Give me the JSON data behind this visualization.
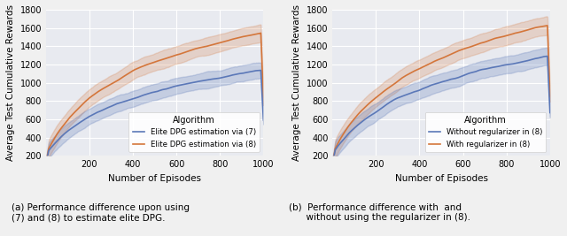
{
  "fig_width": 6.4,
  "fig_height": 2.67,
  "dpi": 100,
  "x_min": 1,
  "x_max": 1000,
  "y_min": 200,
  "y_max": 1800,
  "x_ticks": [
    200,
    400,
    600,
    800,
    1000
  ],
  "y_ticks": [
    200,
    400,
    600,
    800,
    1000,
    1200,
    1400,
    1600,
    1800
  ],
  "xlabel": "Number of Episodes",
  "ylabel": "Average Test Cumulative Rewards",
  "bg_color": "#e8eaf0",
  "grid_color": "#ffffff",
  "blue_color": "#5b78b8",
  "orange_color": "#d4763b",
  "blue_fill_alpha": 0.25,
  "orange_fill_alpha": 0.22,
  "legend_title": "Algorithm",
  "subplot1_labels": [
    "Elite DPG estimation via (7)",
    "Elite DPG estimation via (8)"
  ],
  "subplot2_labels": [
    "Without regularizer in (8)",
    "With regularizer in (8)"
  ],
  "caption_left": "(a) Performance difference upon using\n(7) and (8) to estimate elite DPG.",
  "caption_right": "(b)  Performance difference with  and\n      without using the regularizer in (8).",
  "fig_bg_color": "#f0f0f0"
}
